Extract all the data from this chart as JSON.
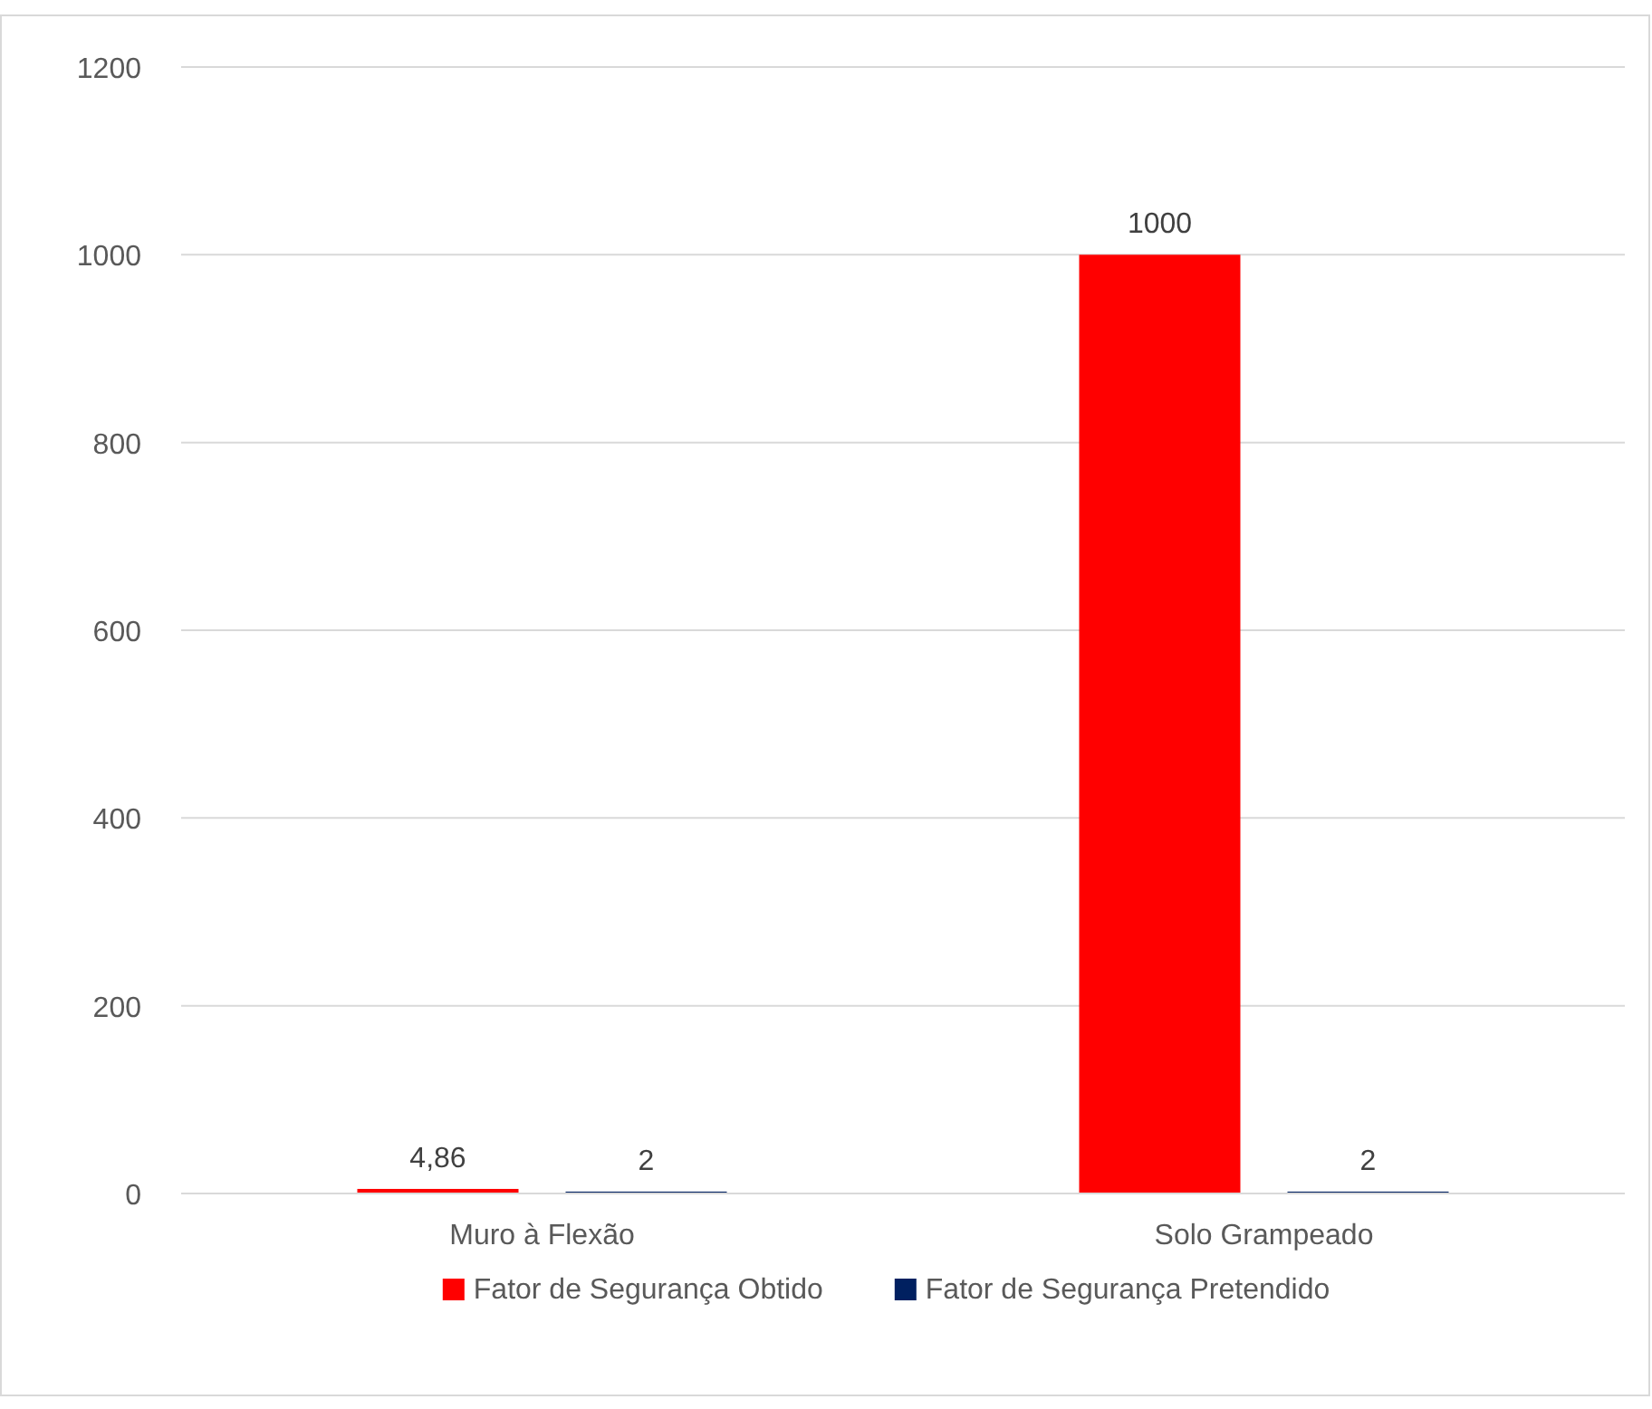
{
  "chart_data": {
    "type": "bar",
    "categories": [
      "Muro à Flexão",
      "Solo Grampeado"
    ],
    "series": [
      {
        "name": "Fator de Segurança Obtido",
        "color": "#ff0000",
        "values": [
          4.86,
          1000
        ],
        "value_labels": [
          "4,86",
          "1000"
        ]
      },
      {
        "name": "Fator de Segurança Pretendido",
        "color": "#002060",
        "values": [
          2,
          2
        ],
        "value_labels": [
          "2",
          "2"
        ]
      }
    ],
    "ylim": [
      0,
      1200
    ],
    "yticks": [
      0,
      200,
      400,
      600,
      800,
      1000,
      1200
    ],
    "grid": "y",
    "legend": "bottom"
  }
}
